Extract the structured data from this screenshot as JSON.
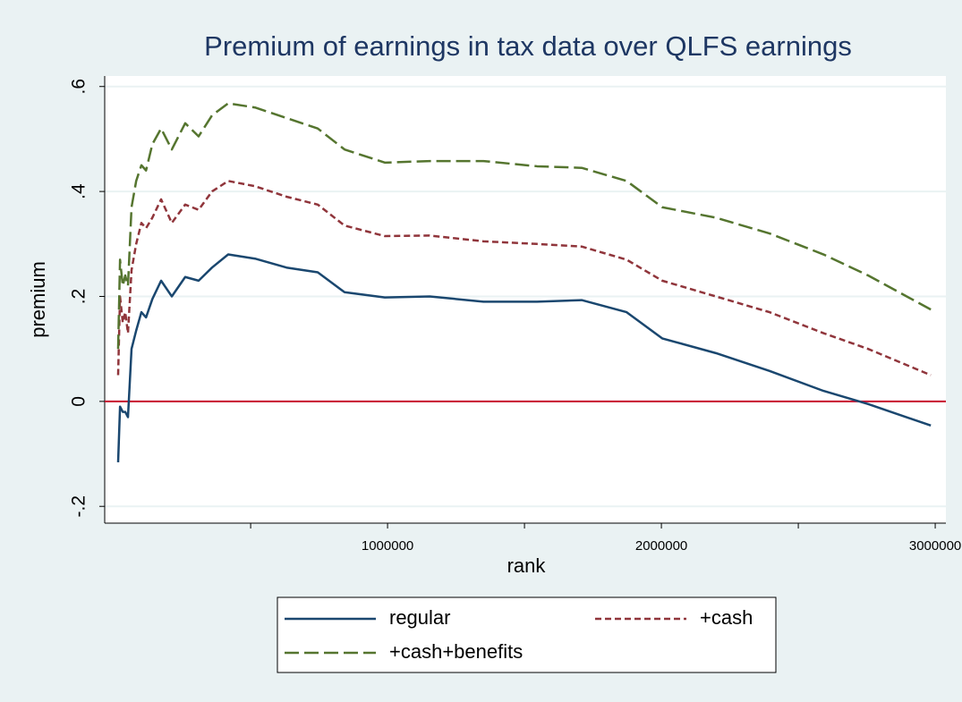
{
  "chart_data": {
    "type": "line",
    "title": "Premium of earnings in tax data over QLFS earnings",
    "xlabel": "rank",
    "ylabel": "premium",
    "x": [
      16000,
      23000,
      33000,
      42000,
      52000,
      65000,
      82000,
      101000,
      118000,
      141000,
      173000,
      212000,
      261000,
      310000,
      359000,
      418000,
      516000,
      631000,
      745000,
      843000,
      990000,
      1154000,
      1350000,
      1546000,
      1709000,
      1873000,
      2003000,
      2199000,
      2395000,
      2592000,
      2755000,
      2984000
    ],
    "series": [
      {
        "name": "regular",
        "color": "#1a476f",
        "dash": "none",
        "values": [
          -0.116,
          -0.01,
          -0.02,
          -0.02,
          -0.03,
          0.1,
          0.135,
          0.17,
          0.16,
          0.195,
          0.23,
          0.2,
          0.237,
          0.23,
          0.255,
          0.28,
          0.272,
          0.255,
          0.246,
          0.208,
          0.198,
          0.2,
          0.19,
          0.19,
          0.193,
          0.17,
          0.12,
          0.092,
          0.058,
          0.02,
          -0.005,
          -0.046
        ]
      },
      {
        "name": "+cash",
        "color": "#90353b",
        "dash": "7 4",
        "values": [
          0.05,
          0.2,
          0.15,
          0.17,
          0.13,
          0.25,
          0.3,
          0.34,
          0.33,
          0.35,
          0.385,
          0.34,
          0.375,
          0.365,
          0.4,
          0.42,
          0.41,
          0.39,
          0.375,
          0.335,
          0.315,
          0.316,
          0.305,
          0.3,
          0.295,
          0.27,
          0.23,
          0.2,
          0.17,
          0.13,
          0.1,
          0.05
        ]
      },
      {
        "name": "+cash+benefits",
        "color": "#55752f",
        "dash": "16 6",
        "values": [
          0.1,
          0.27,
          0.22,
          0.24,
          0.22,
          0.37,
          0.42,
          0.45,
          0.44,
          0.49,
          0.52,
          0.48,
          0.53,
          0.505,
          0.545,
          0.568,
          0.56,
          0.54,
          0.52,
          0.48,
          0.455,
          0.458,
          0.458,
          0.448,
          0.445,
          0.42,
          0.37,
          0.35,
          0.32,
          0.28,
          0.24,
          0.175
        ]
      }
    ],
    "xlim": [
      -33000,
      3039000
    ],
    "xticks": [
      1000000,
      2000000,
      3000000
    ],
    "xminorticks": [
      500000,
      1500000,
      2500000
    ],
    "ylim": [
      -0.232,
      0.62
    ],
    "yticks": [
      {
        "value": -0.2,
        "label": "-.2"
      },
      0,
      {
        "value": 0.2,
        "label": ".2"
      },
      {
        "value": 0.4,
        "label": ".4"
      },
      {
        "value": 0.6,
        "label": ".6"
      }
    ],
    "grid": true,
    "hline": {
      "value": 0,
      "color": "#c8102e"
    },
    "legend": "bottom"
  }
}
